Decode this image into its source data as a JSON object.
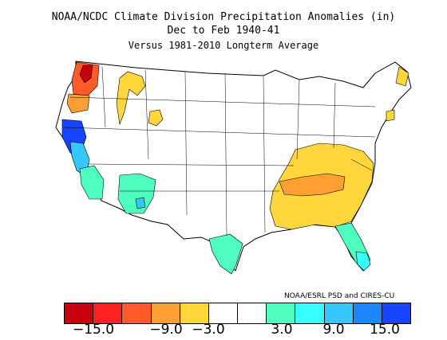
{
  "title": {
    "line1": "NOAA/NCDC Climate Division Precipitation Anomalies (in)",
    "line2": "Dec to Feb 1940-41",
    "line3": "Versus 1981-2010 Longterm Average"
  },
  "credit": "NOAA/ESRL PSD and CIRES-CU",
  "legend": {
    "colors": [
      "#c8000e",
      "#ff2020",
      "#ff5a28",
      "#ff9e32",
      "#ffd73c",
      "#ffffff",
      "#ffffff",
      "#4fffc0",
      "#36ffff",
      "#34c8ff",
      "#1e86ff",
      "#1744ff"
    ],
    "tick_labels": [
      "−15.0",
      "−9.0",
      "−3.0",
      "3.0",
      "9.0",
      "15.0"
    ]
  },
  "regions": [
    {
      "name": "western-washington",
      "category": "strong-dry",
      "color": "#c8000e"
    },
    {
      "name": "washington-cascades",
      "category": "dry",
      "color": "#ff5a28"
    },
    {
      "name": "western-oregon",
      "category": "moderate-dry",
      "color": "#ff9e32"
    },
    {
      "name": "idaho-montana",
      "category": "slight-dry",
      "color": "#ffd73c"
    },
    {
      "name": "new-england-coast",
      "category": "slight-dry",
      "color": "#ffd73c"
    },
    {
      "name": "tennessee-valley",
      "category": "moderate-dry",
      "color": "#ff9e32"
    },
    {
      "name": "southeast",
      "category": "slight-dry",
      "color": "#ffd73c"
    },
    {
      "name": "northern-california",
      "category": "very-wet",
      "color": "#1744ff"
    },
    {
      "name": "central-california",
      "category": "wet",
      "color": "#34c8ff"
    },
    {
      "name": "southern-california",
      "category": "slight-wet",
      "color": "#4fffc0"
    },
    {
      "name": "arizona-new-mexico",
      "category": "slight-wet",
      "color": "#4fffc0"
    },
    {
      "name": "south-texas",
      "category": "slight-wet",
      "color": "#4fffc0"
    },
    {
      "name": "florida",
      "category": "slight-wet",
      "color": "#4fffc0"
    }
  ]
}
